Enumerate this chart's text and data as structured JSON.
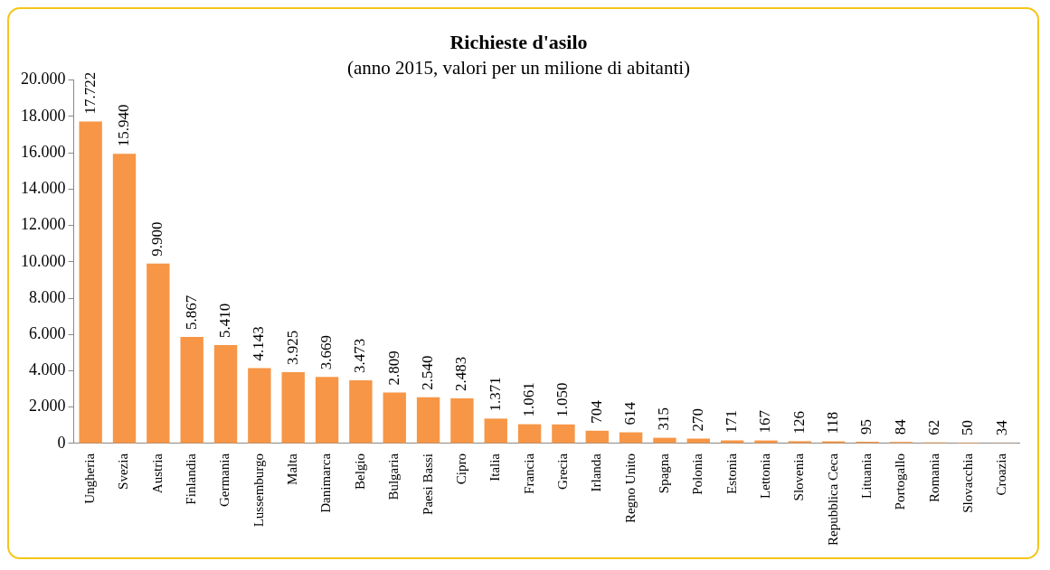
{
  "chart_data": {
    "type": "bar",
    "title": "Richieste d'asilo",
    "subtitle": "(anno 2015, valori per un milione di abitanti)",
    "categories": [
      "Ungheria",
      "Svezia",
      "Austria",
      "Finlandia",
      "Germania",
      "Lussemburgo",
      "Malta",
      "Danimarca",
      "Belgio",
      "Bulgaria",
      "Paesi Bassi",
      "Cipro",
      "Italia",
      "Francia",
      "Grecia",
      "Irlanda",
      "Regno Unito",
      "Spagna",
      "Polonia",
      "Estonia",
      "Lettonia",
      "Slovenia",
      "Repubblica Ceca",
      "Lituania",
      "Portogallo",
      "Romania",
      "Slovacchia",
      "Croazia"
    ],
    "values": [
      17722,
      15940,
      9900,
      5867,
      5410,
      4143,
      3925,
      3669,
      3473,
      2809,
      2540,
      2483,
      1371,
      1061,
      1050,
      704,
      614,
      315,
      270,
      171,
      167,
      126,
      118,
      95,
      84,
      62,
      50,
      34
    ],
    "value_labels": [
      "17.722",
      "15.940",
      "9.900",
      "5.867",
      "5.410",
      "4.143",
      "3.925",
      "3.669",
      "3.473",
      "2.809",
      "2.540",
      "2.483",
      "1.371",
      "1.061",
      "1.050",
      "704",
      "614",
      "315",
      "270",
      "171",
      "167",
      "126",
      "118",
      "95",
      "84",
      "62",
      "50",
      "34"
    ],
    "color": "#f79646",
    "ylim": [
      0,
      20000
    ],
    "yticks": [
      0,
      {
        "value": 2000,
        "label": "2.000"
      },
      {
        "value": 4000,
        "label": "4.000"
      },
      {
        "value": 6000,
        "label": "6.000"
      },
      {
        "value": 8000,
        "label": "8.000"
      },
      {
        "value": 10000,
        "label": "10.000"
      },
      {
        "value": 12000,
        "label": "12.000"
      },
      {
        "value": 14000,
        "label": "14.000"
      },
      {
        "value": 16000,
        "label": "16.000"
      },
      {
        "value": 18000,
        "label": "18.000"
      },
      {
        "value": 20000,
        "label": "20.000"
      }
    ],
    "grid": false,
    "legend": false
  }
}
